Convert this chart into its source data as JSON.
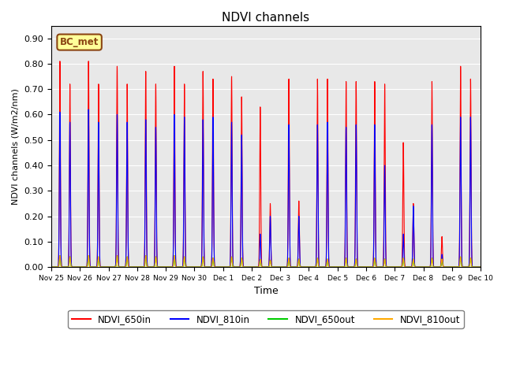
{
  "title": "NDVI channels",
  "xlabel": "Time",
  "ylabel": "NDVI channels (W/m2/nm)",
  "ylim": [
    0.0,
    0.95
  ],
  "yticks": [
    0.0,
    0.1,
    0.2,
    0.3,
    0.4,
    0.5,
    0.6,
    0.7,
    0.8,
    0.9
  ],
  "bg_color": "#e8e8e8",
  "annotation_text": "BC_met",
  "annotation_bg": "#ffff99",
  "annotation_border": "#8B4513",
  "colors": {
    "NDVI_650in": "#ff0000",
    "NDVI_810in": "#0000ff",
    "NDVI_650out": "#00cc00",
    "NDVI_810out": "#ffaa00"
  },
  "xtick_labels": [
    "Nov 25",
    "Nov 26",
    "Nov 27",
    "Nov 28",
    "Nov 29",
    "Nov 30",
    "Dec 1",
    "Dec 2",
    "Dec 3",
    "Dec 4",
    "Dec 5",
    "Dec 6",
    "Dec 7",
    "Dec 8",
    "Dec 9",
    "Dec 10"
  ],
  "n_days": 15,
  "spike_data": [
    {
      "day": 0,
      "t1": 0.3,
      "t2": 0.65,
      "p1_r": 0.81,
      "p2_r": 0.72,
      "p1_b": 0.61,
      "p2_b": 0.57,
      "p_go": 0.045
    },
    {
      "day": 1,
      "t1": 0.3,
      "t2": 0.65,
      "p1_r": 0.81,
      "p2_r": 0.72,
      "p1_b": 0.62,
      "p2_b": 0.57,
      "p_go": 0.045
    },
    {
      "day": 2,
      "t1": 0.3,
      "t2": 0.65,
      "p1_r": 0.79,
      "p2_r": 0.72,
      "p1_b": 0.6,
      "p2_b": 0.57,
      "p_go": 0.045
    },
    {
      "day": 3,
      "t1": 0.3,
      "t2": 0.65,
      "p1_r": 0.77,
      "p2_r": 0.72,
      "p1_b": 0.58,
      "p2_b": 0.55,
      "p_go": 0.045
    },
    {
      "day": 4,
      "t1": 0.3,
      "t2": 0.65,
      "p1_r": 0.79,
      "p2_r": 0.72,
      "p1_b": 0.6,
      "p2_b": 0.59,
      "p_go": 0.045
    },
    {
      "day": 5,
      "t1": 0.3,
      "t2": 0.65,
      "p1_r": 0.77,
      "p2_r": 0.74,
      "p1_b": 0.58,
      "p2_b": 0.59,
      "p_go": 0.04
    },
    {
      "day": 6,
      "t1": 0.3,
      "t2": 0.65,
      "p1_r": 0.75,
      "p2_r": 0.67,
      "p1_b": 0.57,
      "p2_b": 0.52,
      "p_go": 0.04
    },
    {
      "day": 7,
      "t1": 0.3,
      "t2": 0.65,
      "p1_r": 0.63,
      "p2_r": 0.25,
      "p1_b": 0.13,
      "p2_b": 0.2,
      "p_go": 0.03
    },
    {
      "day": 8,
      "t1": 0.3,
      "t2": 0.65,
      "p1_r": 0.74,
      "p2_r": 0.26,
      "p1_b": 0.56,
      "p2_b": 0.2,
      "p_go": 0.035
    },
    {
      "day": 9,
      "t1": 0.3,
      "t2": 0.65,
      "p1_r": 0.74,
      "p2_r": 0.74,
      "p1_b": 0.56,
      "p2_b": 0.57,
      "p_go": 0.035
    },
    {
      "day": 10,
      "t1": 0.3,
      "t2": 0.65,
      "p1_r": 0.73,
      "p2_r": 0.73,
      "p1_b": 0.55,
      "p2_b": 0.56,
      "p_go": 0.035
    },
    {
      "day": 11,
      "t1": 0.3,
      "t2": 0.65,
      "p1_r": 0.73,
      "p2_r": 0.72,
      "p1_b": 0.56,
      "p2_b": 0.4,
      "p_go": 0.035
    },
    {
      "day": 12,
      "t1": 0.3,
      "t2": 0.65,
      "p1_r": 0.49,
      "p2_r": 0.25,
      "p1_b": 0.13,
      "p2_b": 0.24,
      "p_go": 0.035
    },
    {
      "day": 13,
      "t1": 0.3,
      "t2": 0.65,
      "p1_r": 0.73,
      "p2_r": 0.12,
      "p1_b": 0.56,
      "p2_b": 0.05,
      "p_go": 0.035
    },
    {
      "day": 14,
      "t1": 0.3,
      "t2": 0.65,
      "p1_r": 0.79,
      "p2_r": 0.74,
      "p1_b": 0.59,
      "p2_b": 0.59,
      "p_go": 0.04
    }
  ]
}
